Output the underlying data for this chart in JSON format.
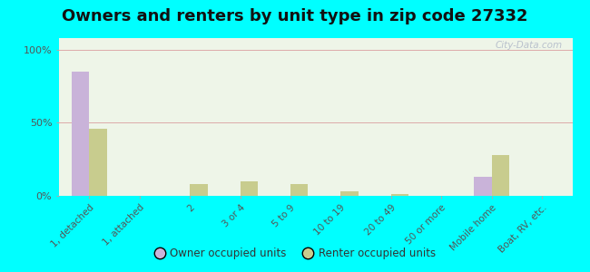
{
  "title": "Owners and renters by unit type in zip code 27332",
  "categories": [
    "1, detached",
    "1, attached",
    "2",
    "3 or 4",
    "5 to 9",
    "10 to 19",
    "20 to 49",
    "50 or more",
    "Mobile home",
    "Boat, RV, etc."
  ],
  "owner_values": [
    85,
    0,
    0,
    0,
    0,
    0,
    0,
    0,
    13,
    0
  ],
  "renter_values": [
    46,
    0,
    8,
    10,
    8,
    3,
    1,
    0,
    28,
    0
  ],
  "owner_color": "#c9b3d9",
  "renter_color": "#c8cc8e",
  "background_color": "#00ffff",
  "plot_bg_color": "#eef5e8",
  "yticks": [
    0,
    50,
    100
  ],
  "ylabels": [
    "0%",
    "50%",
    "100%"
  ],
  "ylim": [
    0,
    108
  ],
  "legend_owner": "Owner occupied units",
  "legend_renter": "Renter occupied units",
  "title_fontsize": 13,
  "bar_width": 0.35,
  "gridline_color": "#ddaaaa",
  "watermark": "City-Data.com"
}
